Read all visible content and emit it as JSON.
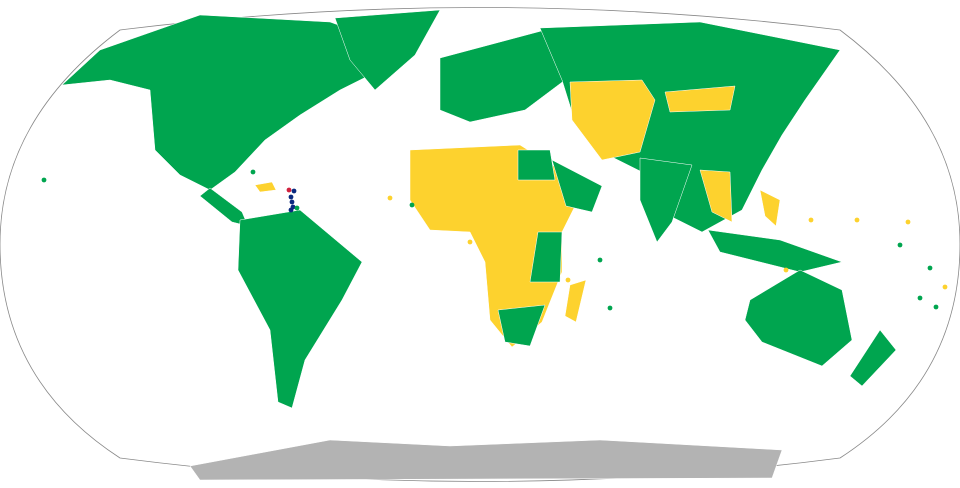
{
  "map": {
    "projection": "world-robinson-like",
    "colors": {
      "green": "#00a54f",
      "yellow": "#fdd22e",
      "antarctica": "#b3b3b3",
      "navy": "#0a2a80",
      "red": "#d0213e",
      "border": "#888888",
      "ocean": "#ffffff"
    },
    "regions": [
      {
        "name": "north-america",
        "status": "green"
      },
      {
        "name": "greenland",
        "status": "green"
      },
      {
        "name": "central-america",
        "status": "green"
      },
      {
        "name": "south-america",
        "status": "green"
      },
      {
        "name": "europe",
        "status": "green"
      },
      {
        "name": "russia-asia",
        "status": "green"
      },
      {
        "name": "central-asia",
        "status": "yellow"
      },
      {
        "name": "mongolia",
        "status": "yellow"
      },
      {
        "name": "africa",
        "status": "yellow"
      },
      {
        "name": "egypt",
        "status": "green"
      },
      {
        "name": "east-africa",
        "status": "green"
      },
      {
        "name": "southern-africa",
        "status": "green"
      },
      {
        "name": "arabia",
        "status": "green"
      },
      {
        "name": "india",
        "status": "green"
      },
      {
        "name": "southeast-asia",
        "status": "yellow"
      },
      {
        "name": "philippines",
        "status": "yellow"
      },
      {
        "name": "madagascar",
        "status": "yellow"
      },
      {
        "name": "indonesia",
        "status": "green"
      },
      {
        "name": "australia",
        "status": "green"
      },
      {
        "name": "new-zealand",
        "status": "green"
      },
      {
        "name": "antarctica",
        "status": "antarctica"
      },
      {
        "name": "hispaniola",
        "status": "yellow"
      }
    ]
  }
}
